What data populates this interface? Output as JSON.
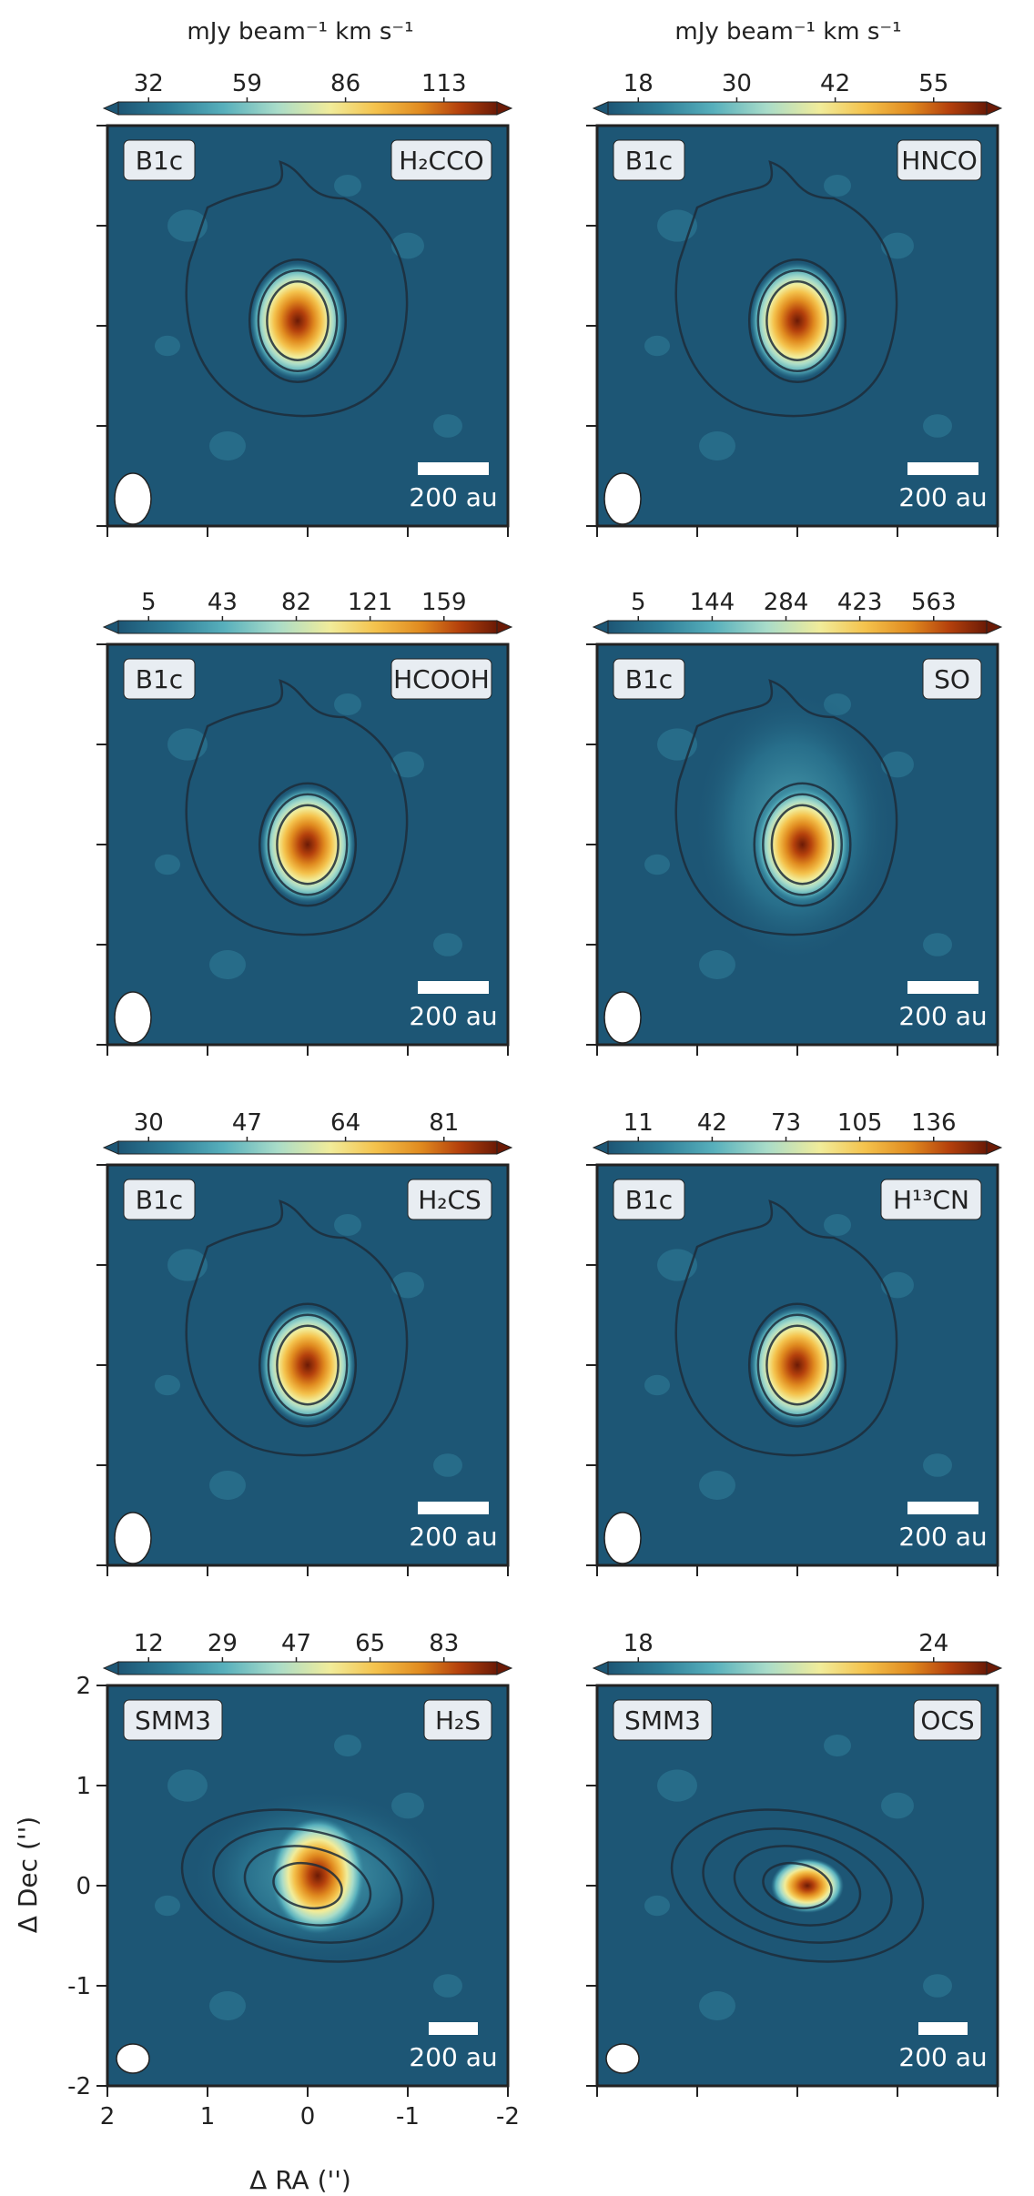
{
  "figure": {
    "colorbar_unit_label": "mJy beam⁻¹ km s⁻¹",
    "scalebar_label": "200 au",
    "xlabel": "Δ RA ('')",
    "ylabel": "Δ Dec ('')",
    "axis_ticks": [
      "2",
      "1",
      "0",
      "-1",
      "-2"
    ],
    "colors": {
      "background": "#1d5675",
      "contour": "#1d2b3a",
      "label_box": "#e8edf2",
      "colormap": [
        "#1d5675",
        "#2f7f99",
        "#58b0bc",
        "#a9dcc9",
        "#f1ec9a",
        "#f4c24c",
        "#e08a1f",
        "#b5410c",
        "#6b1a06"
      ]
    }
  },
  "chart_data": [
    {
      "type": "heatmap",
      "source": "B1c",
      "molecule": "H₂CCO",
      "colorbar_ticks": [
        "32",
        "59",
        "86",
        "113"
      ],
      "xlim": [
        2,
        -2
      ],
      "ylim": [
        -2,
        2
      ],
      "peak_offset": [
        0.1,
        0.05
      ]
    },
    {
      "type": "heatmap",
      "source": "B1c",
      "molecule": "HNCO",
      "colorbar_ticks": [
        "18",
        "30",
        "42",
        "55"
      ],
      "xlim": [
        2,
        -2
      ],
      "ylim": [
        -2,
        2
      ],
      "peak_offset": [
        0.0,
        0.05
      ]
    },
    {
      "type": "heatmap",
      "source": "B1c",
      "molecule": "HCOOH",
      "colorbar_ticks": [
        "5",
        "43",
        "82",
        "121",
        "159"
      ],
      "xlim": [
        2,
        -2
      ],
      "ylim": [
        -2,
        2
      ],
      "peak_offset": [
        0.0,
        0.0
      ]
    },
    {
      "type": "heatmap",
      "source": "B1c",
      "molecule": "SO",
      "colorbar_ticks": [
        "5",
        "144",
        "284",
        "423",
        "563"
      ],
      "xlim": [
        2,
        -2
      ],
      "ylim": [
        -2,
        2
      ],
      "peak_offset": [
        -0.05,
        0.0
      ]
    },
    {
      "type": "heatmap",
      "source": "B1c",
      "molecule": "H₂CS",
      "colorbar_ticks": [
        "30",
        "47",
        "64",
        "81"
      ],
      "xlim": [
        2,
        -2
      ],
      "ylim": [
        -2,
        2
      ],
      "peak_offset": [
        0.0,
        0.0
      ]
    },
    {
      "type": "heatmap",
      "source": "B1c",
      "molecule": "H¹³CN",
      "colorbar_ticks": [
        "11",
        "42",
        "73",
        "105",
        "136"
      ],
      "xlim": [
        2,
        -2
      ],
      "ylim": [
        -2,
        2
      ],
      "peak_offset": [
        0.0,
        0.0
      ]
    },
    {
      "type": "heatmap",
      "source": "SMM3",
      "molecule": "H₂S",
      "colorbar_ticks": [
        "12",
        "29",
        "47",
        "65",
        "83"
      ],
      "xlim": [
        2,
        -2
      ],
      "ylim": [
        -2,
        2
      ],
      "peak_offset": [
        -0.1,
        0.1
      ]
    },
    {
      "type": "heatmap",
      "source": "SMM3",
      "molecule": "OCS",
      "colorbar_ticks": [
        "18",
        "24"
      ],
      "xlim": [
        2,
        -2
      ],
      "ylim": [
        -2,
        2
      ],
      "peak_offset": [
        -0.1,
        0.0
      ]
    }
  ]
}
